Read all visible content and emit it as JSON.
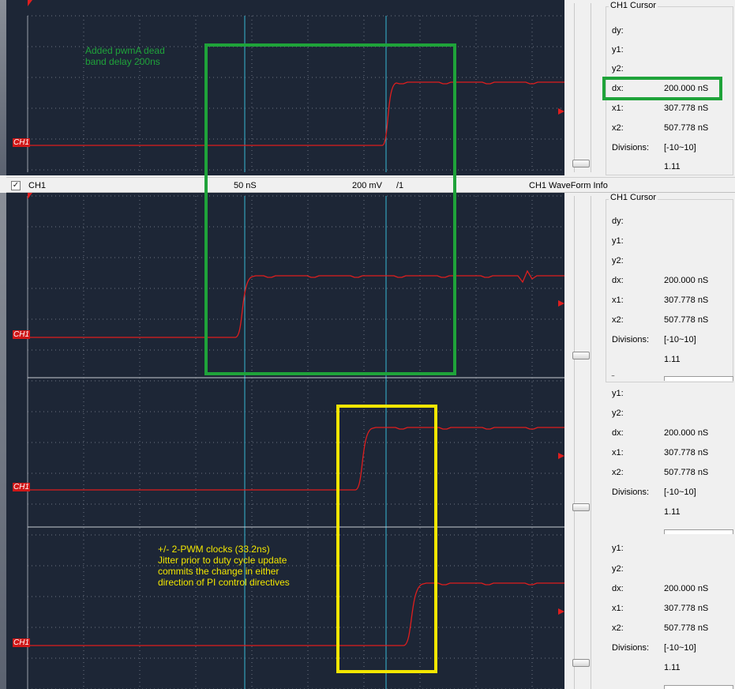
{
  "toolbar": {
    "channel": "CH1",
    "timebase": "50 nS",
    "volts": "200 mV",
    "probe": "/1",
    "info_title": "CH1 WaveForm Info",
    "checked": true
  },
  "trace_label": "CH1",
  "annotations": {
    "green": "Added pwmA dead band delay 200ns",
    "yellow_line1": "+/- 2-PWM clocks (33.2ns)",
    "yellow_line2": "Jitter prior to duty cycle update",
    "yellow_line3": "commits the change in either",
    "yellow_line4": "direction of PI control directives"
  },
  "cursor": {
    "title": "CH1 Cursor",
    "dy_label": "dy:",
    "y1_label": "y1:",
    "y2_label": "y2:",
    "dx_label": "dx:",
    "dx_value": "200.000 nS",
    "x1_label": "x1:",
    "x1_value": "307.778 nS",
    "x2_label": "x2:",
    "x2_value": "507.778 nS",
    "div_label": "Divisions:",
    "div_value": "[-10~10]",
    "div_number": "1.11"
  },
  "colors": {
    "scope_bg": "#1d2636",
    "trace": "#e01e1e",
    "cursor_line": "#37b8d4",
    "green_box": "#1fa33a",
    "yellow_box": "#f2e600"
  }
}
